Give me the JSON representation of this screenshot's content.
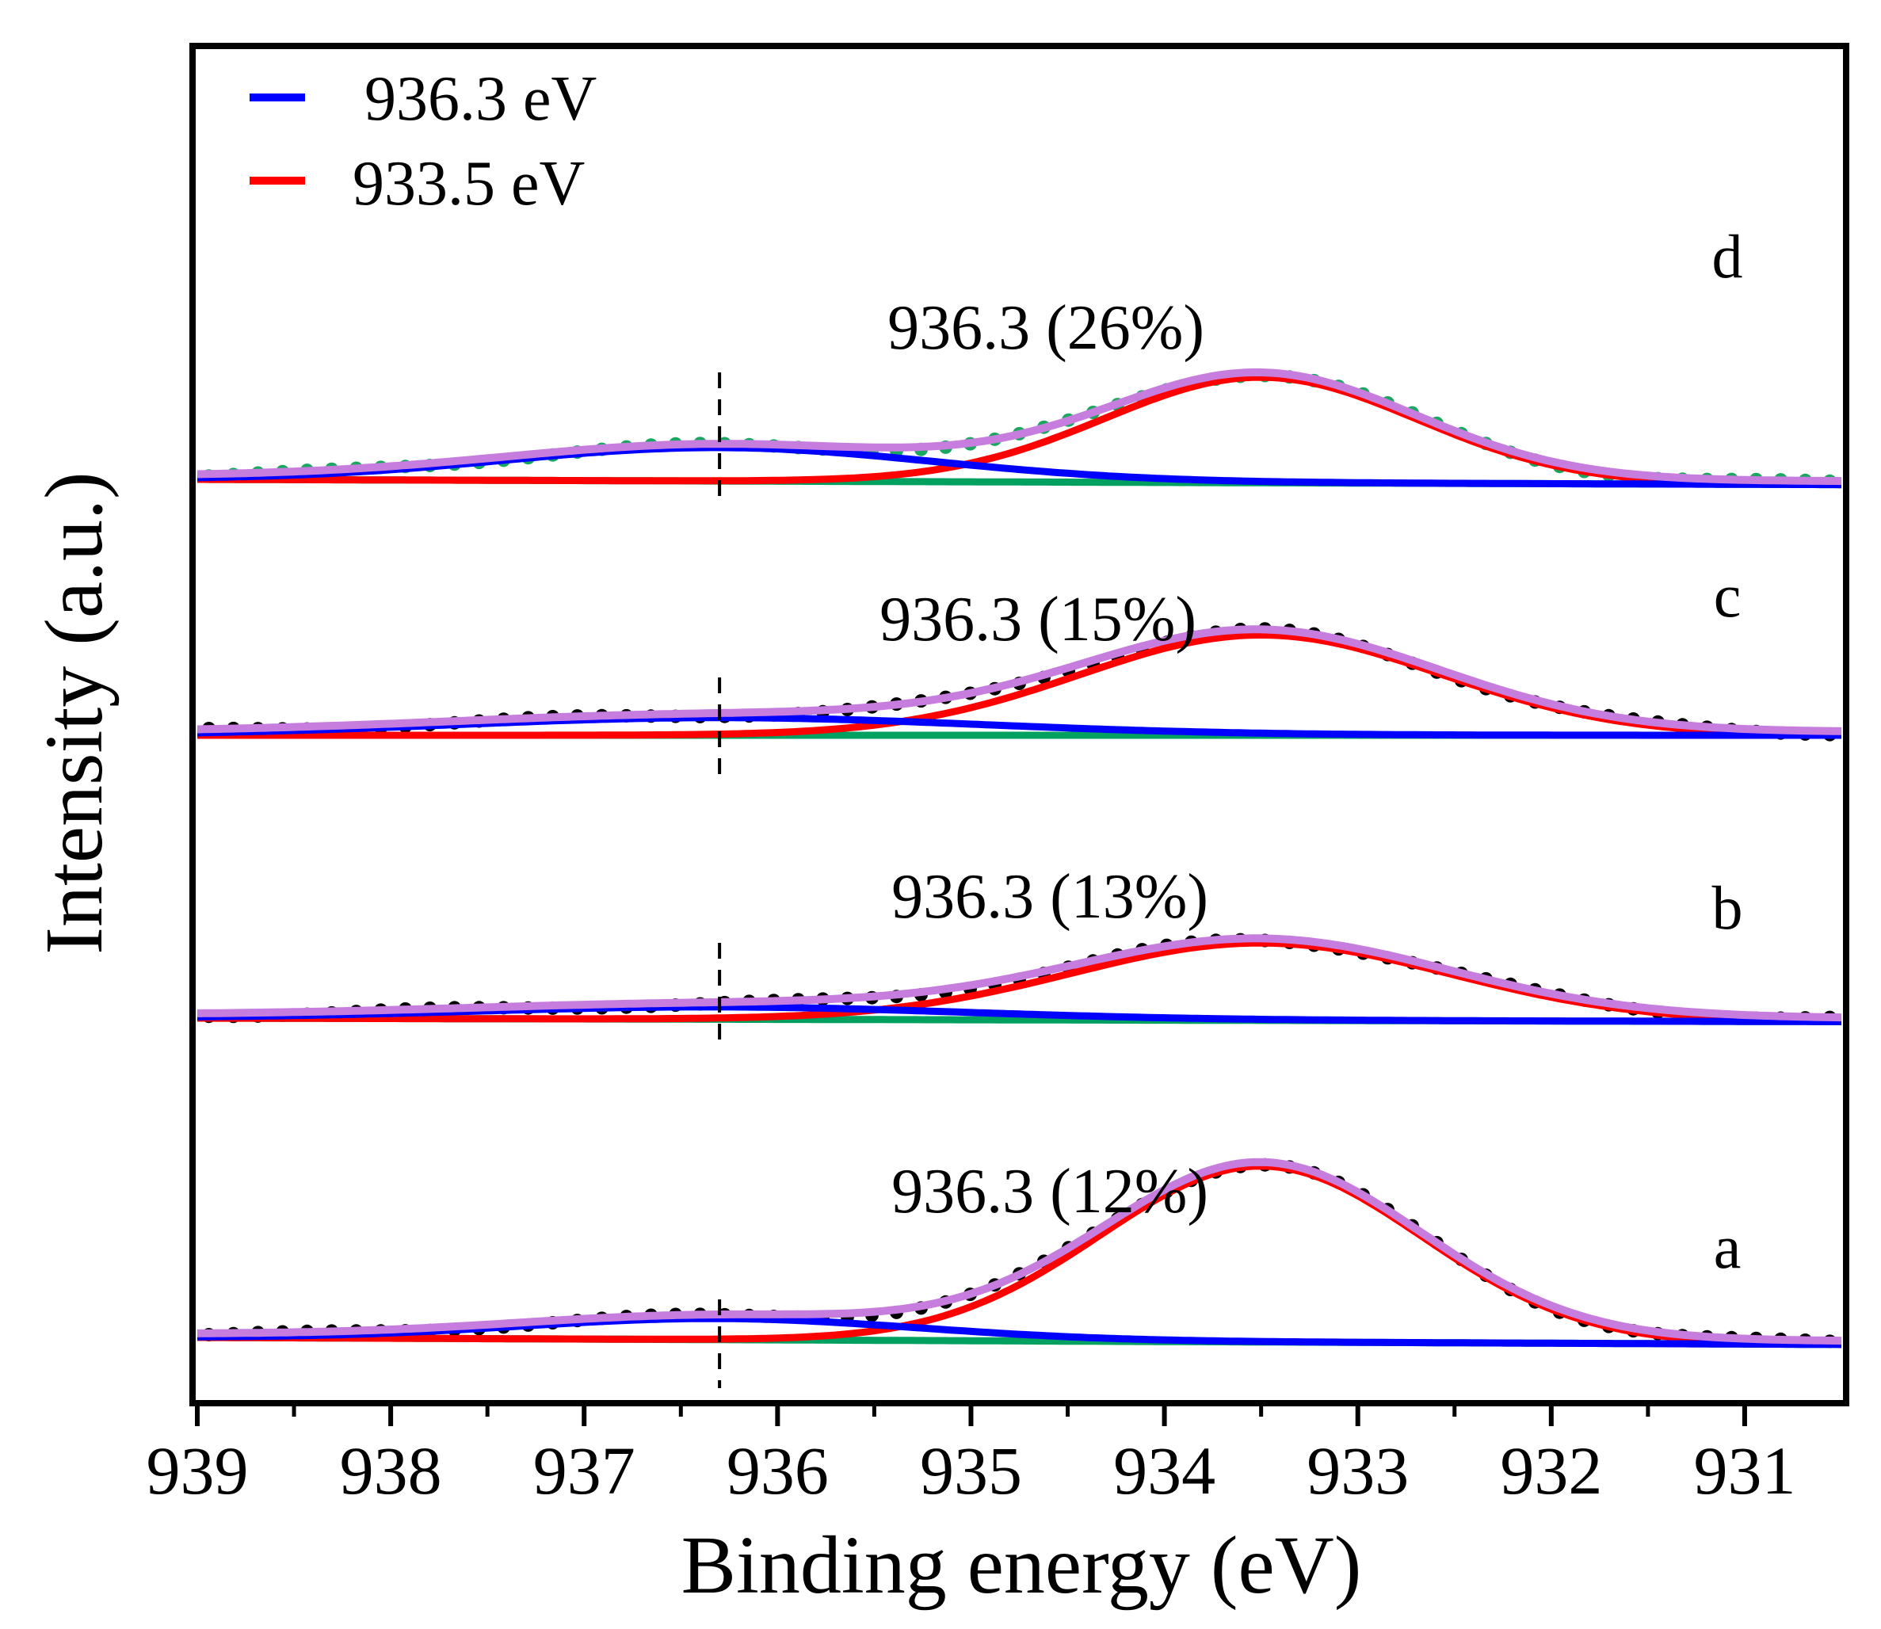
{
  "chart_data": {
    "type": "line",
    "title": "",
    "xlabel": "Binding energy (eV)",
    "ylabel": "Intensity (a.u.)",
    "xlim": [
      939,
      930.5
    ],
    "x_reversed": true,
    "x_ticks": [
      939,
      938,
      937,
      936,
      935,
      934,
      933,
      932,
      931
    ],
    "y_ticks_shown": false,
    "grid": false,
    "legend": {
      "position": "top-left",
      "entries": [
        {
          "label": "936.3 eV",
          "color": "#0000ff"
        },
        {
          "label": "933.5 eV",
          "color": "#ff0000"
        }
      ]
    },
    "component_colors": {
      "satellite": "#0000ff",
      "main": "#ff0000",
      "envelope": "#c77dde",
      "background": "#00a060"
    },
    "marker_line_x": 936.3,
    "panels": [
      {
        "label": "a",
        "annotation": "936.3 (12%)",
        "data_color": "#000000",
        "main_peak": {
          "center": 933.5,
          "height": 1.0,
          "fwhm": 1.95
        },
        "sat_peak": {
          "center": 936.3,
          "height": 0.12,
          "fwhm": 2.4
        },
        "background": [
          0.0,
          -0.04
        ]
      },
      {
        "label": "b",
        "annotation": "936.3 (13%)",
        "data_color": "#000000",
        "main_peak": {
          "center": 933.5,
          "height": 0.44,
          "fwhm": 2.3
        },
        "sat_peak": {
          "center": 936.3,
          "height": 0.07,
          "fwhm": 3.0
        },
        "background": [
          0.0,
          -0.02
        ]
      },
      {
        "label": "c",
        "annotation": "936.3 (15%)",
        "data_color": "#000000",
        "main_peak": {
          "center": 933.5,
          "height": 0.57,
          "fwhm": 2.2
        },
        "sat_peak": {
          "center": 936.3,
          "height": 0.1,
          "fwhm": 3.2
        },
        "background": [
          0.0,
          0.0
        ]
      },
      {
        "label": "d",
        "annotation": "936.3 (26%)",
        "data_color": "#1aa860",
        "main_peak": {
          "center": 933.5,
          "height": 0.6,
          "fwhm": 1.9
        },
        "sat_peak": {
          "center": 936.3,
          "height": 0.19,
          "fwhm": 2.6
        },
        "background": [
          0.0,
          -0.03
        ]
      }
    ]
  }
}
